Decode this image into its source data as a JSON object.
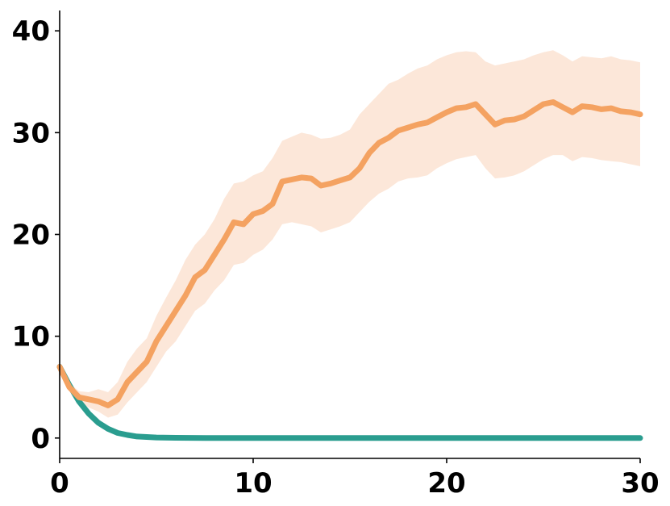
{
  "chart_data": {
    "type": "line",
    "title": "",
    "xlabel": "",
    "ylabel": "",
    "xlim": [
      0,
      30
    ],
    "ylim": [
      -2,
      42
    ],
    "xticks": [
      0,
      10,
      20,
      30
    ],
    "yticks": [
      0,
      10,
      20,
      30,
      40
    ],
    "xtick_labels": [
      "0",
      "10",
      "20",
      "30"
    ],
    "ytick_labels": [
      "0",
      "10",
      "20",
      "30",
      "40"
    ],
    "grid": false,
    "legend": "none",
    "series": [
      {
        "color": "#2a9d8f",
        "x": [
          0,
          0.5,
          1,
          1.5,
          2,
          2.5,
          3,
          3.5,
          4,
          5,
          6,
          8,
          10,
          15,
          20,
          25,
          30
        ],
        "values": [
          7.0,
          5.2,
          3.6,
          2.4,
          1.5,
          0.9,
          0.5,
          0.3,
          0.15,
          0.05,
          0.02,
          0,
          0,
          0,
          0,
          0,
          0
        ]
      },
      {
        "color": "#f4a261",
        "band_color": "#fbe3d2",
        "x": [
          0,
          0.5,
          1,
          1.5,
          2,
          2.5,
          3,
          3.5,
          4,
          4.5,
          5,
          5.5,
          6,
          6.5,
          7,
          7.5,
          8,
          8.5,
          9,
          9.5,
          10,
          10.5,
          11,
          11.5,
          12,
          12.5,
          13,
          13.5,
          14,
          14.5,
          15,
          15.5,
          16,
          16.5,
          17,
          17.5,
          18,
          18.5,
          19,
          19.5,
          20,
          20.5,
          21,
          21.5,
          22,
          22.5,
          23,
          23.5,
          24,
          24.5,
          25,
          25.5,
          26,
          26.5,
          27,
          27.5,
          28,
          28.5,
          29,
          29.5,
          30
        ],
        "values": [
          7.0,
          5.0,
          4.0,
          3.8,
          3.6,
          3.2,
          3.8,
          5.5,
          6.5,
          7.5,
          9.5,
          11.0,
          12.5,
          14.0,
          15.8,
          16.5,
          18.0,
          19.5,
          21.2,
          21.0,
          22.0,
          22.3,
          23.0,
          25.2,
          25.4,
          25.6,
          25.5,
          24.8,
          25.0,
          25.3,
          25.6,
          26.5,
          28.0,
          29.0,
          29.5,
          30.2,
          30.5,
          30.8,
          31.0,
          31.5,
          32.0,
          32.4,
          32.5,
          32.8,
          31.8,
          30.8,
          31.2,
          31.3,
          31.6,
          32.2,
          32.8,
          33.0,
          32.5,
          32.0,
          32.6,
          32.5,
          32.3,
          32.4,
          32.1,
          32.0,
          31.8
        ],
        "lower": [
          6.8,
          4.8,
          3.5,
          3.0,
          2.6,
          2.0,
          2.3,
          3.5,
          4.5,
          5.5,
          7.0,
          8.5,
          9.5,
          11.0,
          12.5,
          13.2,
          14.5,
          15.5,
          17.0,
          17.2,
          18.0,
          18.5,
          19.5,
          21.0,
          21.2,
          21.0,
          20.8,
          20.2,
          20.5,
          20.8,
          21.2,
          22.2,
          23.2,
          24.0,
          24.5,
          25.2,
          25.5,
          25.6,
          25.8,
          26.5,
          27.0,
          27.4,
          27.6,
          27.8,
          26.5,
          25.5,
          25.6,
          25.8,
          26.2,
          26.8,
          27.4,
          27.8,
          27.8,
          27.2,
          27.6,
          27.5,
          27.3,
          27.2,
          27.1,
          26.9,
          26.7
        ],
        "upper": [
          7.2,
          5.4,
          4.6,
          4.5,
          4.8,
          4.5,
          5.5,
          7.5,
          8.8,
          9.8,
          12.0,
          13.8,
          15.5,
          17.5,
          19.0,
          20.0,
          21.5,
          23.5,
          25.0,
          25.2,
          25.8,
          26.2,
          27.5,
          29.2,
          29.6,
          30.0,
          29.8,
          29.4,
          29.5,
          29.8,
          30.3,
          31.8,
          32.8,
          33.8,
          34.8,
          35.2,
          35.8,
          36.3,
          36.6,
          37.2,
          37.6,
          37.9,
          38.0,
          37.9,
          37.0,
          36.6,
          36.8,
          37.0,
          37.2,
          37.6,
          37.9,
          38.1,
          37.6,
          37.0,
          37.5,
          37.4,
          37.3,
          37.5,
          37.2,
          37.1,
          36.9
        ]
      }
    ]
  }
}
